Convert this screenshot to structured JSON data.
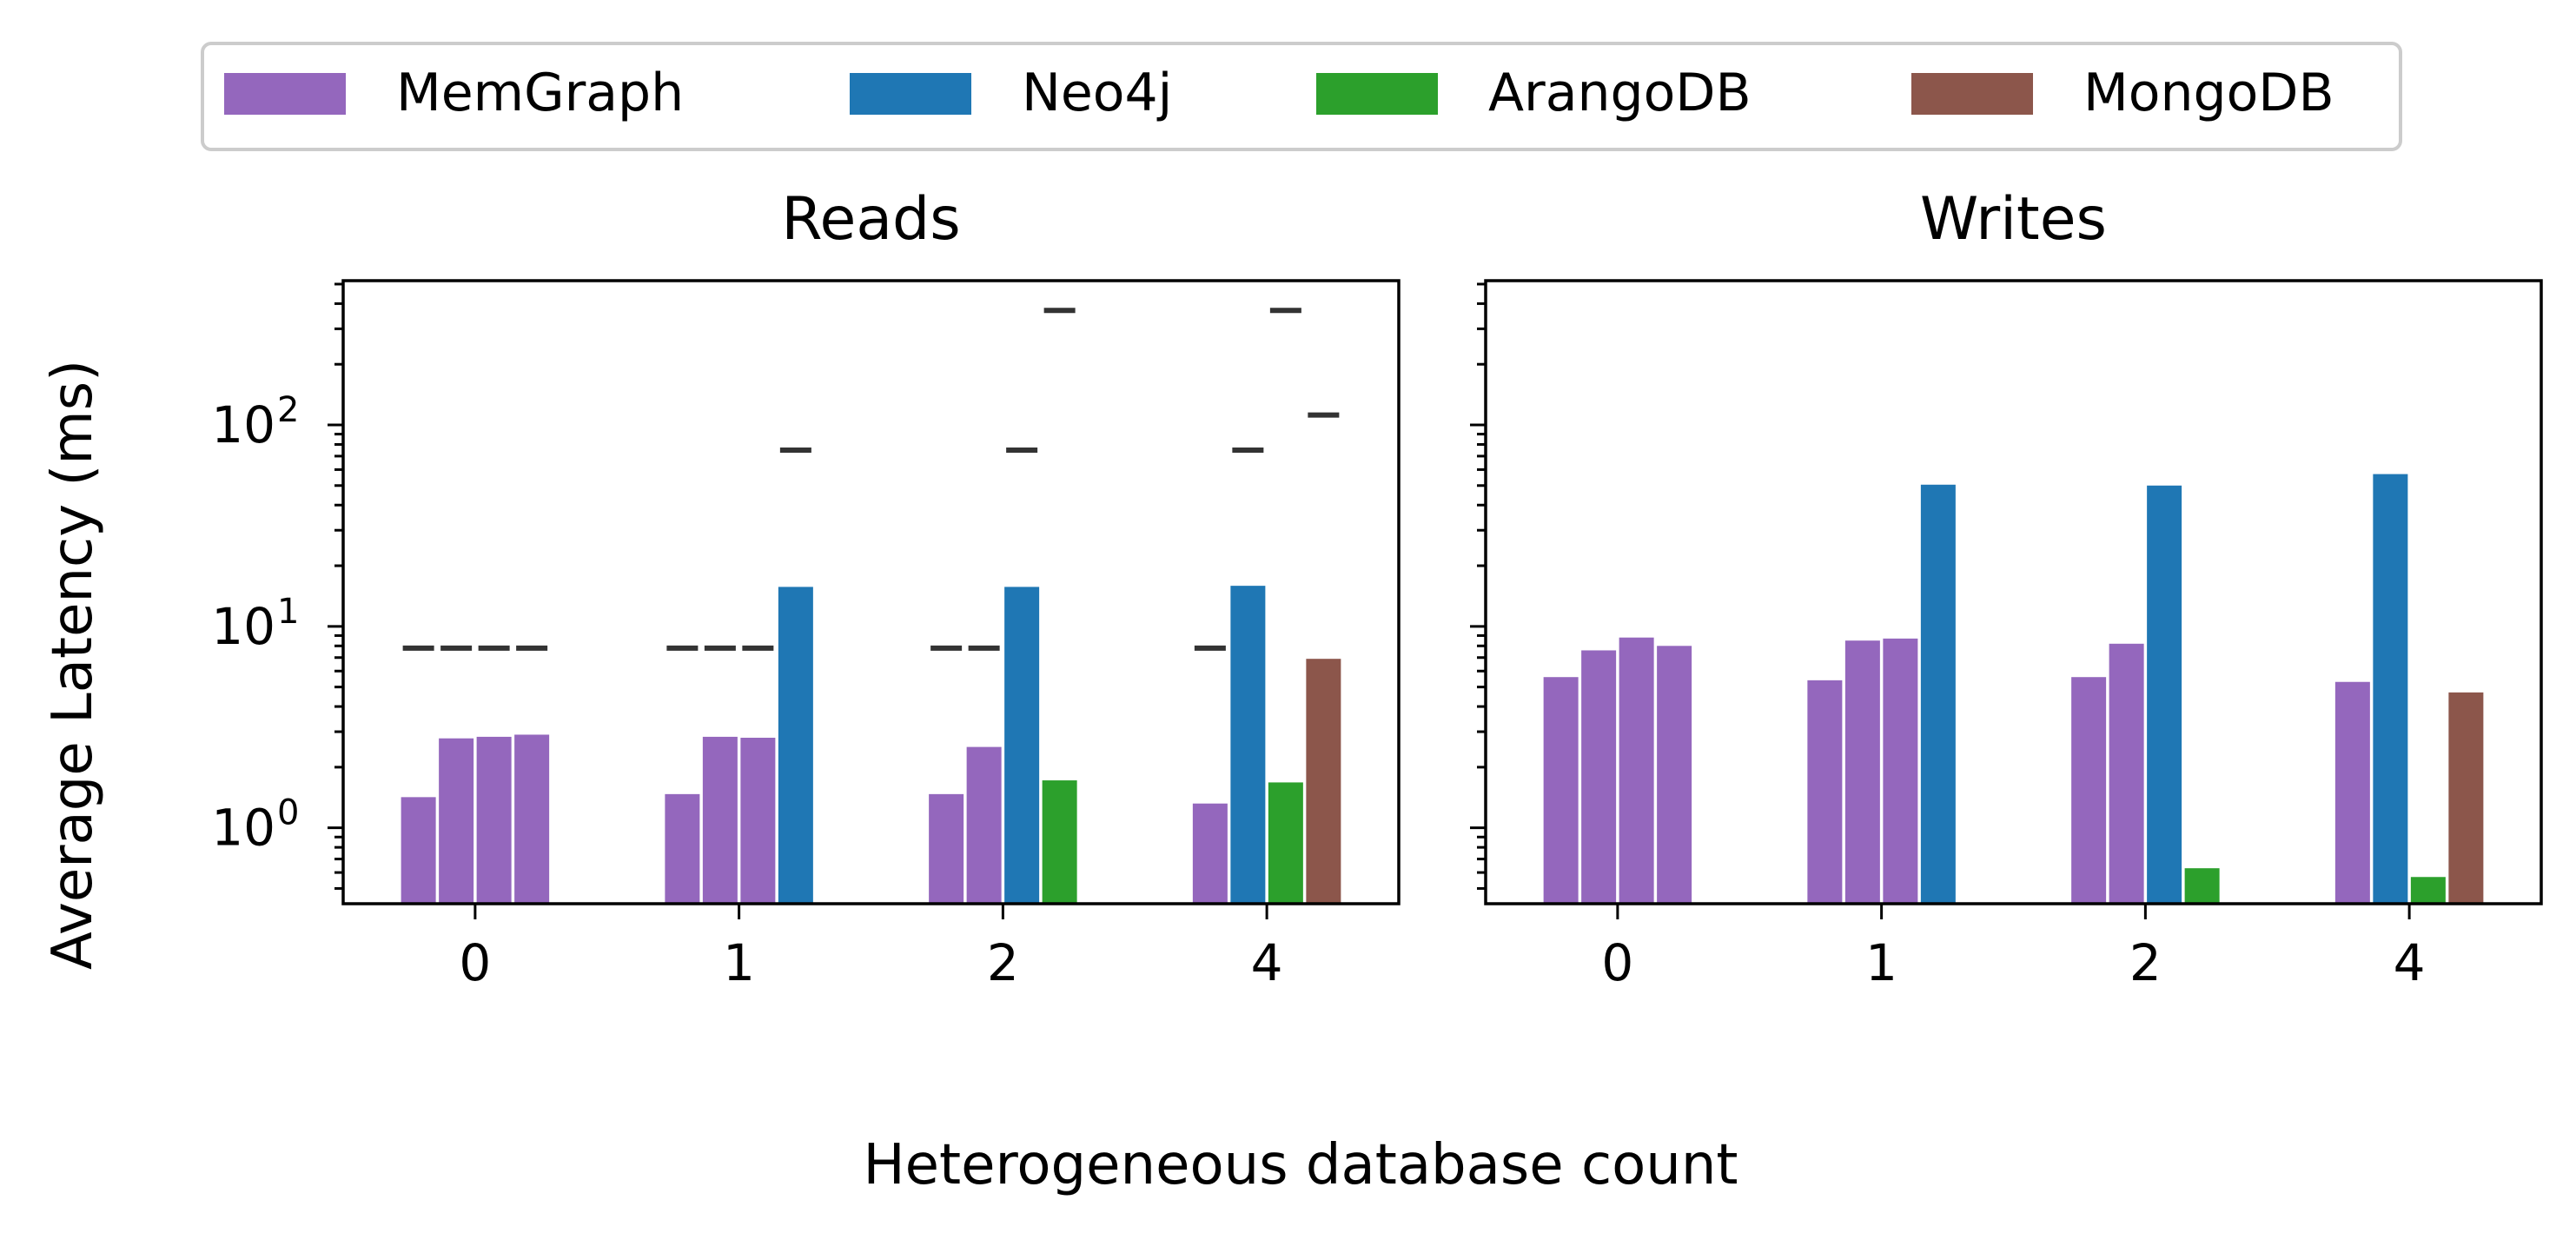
{
  "chart_data": {
    "type": "bar",
    "legend": {
      "placement": "top",
      "entries": [
        {
          "label": "MemGraph",
          "color": "#9467bd"
        },
        {
          "label": "Neo4j",
          "color": "#1f77b4"
        },
        {
          "label": "ArangoDB",
          "color": "#2ca02c"
        },
        {
          "label": "MongoDB",
          "color": "#8c564b"
        }
      ]
    },
    "xlabel": "Heterogeneous database count",
    "ylabel": "Average Latency (ms)",
    "yscale": "log",
    "ylim": [
      0.42,
      520
    ],
    "yticks": [
      {
        "value": 1,
        "base": "10",
        "exp": "0"
      },
      {
        "value": 10,
        "base": "10",
        "exp": "1"
      },
      {
        "value": 100,
        "base": "10",
        "exp": "2"
      }
    ],
    "categories": [
      "0",
      "1",
      "2",
      "4"
    ],
    "bar_marker_color": "#333333",
    "panels": [
      {
        "title": "Reads",
        "groups": [
          {
            "category": "0",
            "bars": [
              {
                "series": "MemGraph",
                "value": 1.42,
                "marker": 7.8
              },
              {
                "series": "MemGraph",
                "value": 2.78,
                "marker": 7.8
              },
              {
                "series": "MemGraph",
                "value": 2.83,
                "marker": 7.8
              },
              {
                "series": "MemGraph",
                "value": 2.9,
                "marker": 7.8
              }
            ]
          },
          {
            "category": "1",
            "bars": [
              {
                "series": "MemGraph",
                "value": 1.47,
                "marker": 7.8
              },
              {
                "series": "MemGraph",
                "value": 2.83,
                "marker": 7.8
              },
              {
                "series": "MemGraph",
                "value": 2.8,
                "marker": 7.8
              },
              {
                "series": "Neo4j",
                "value": 15.7,
                "marker": 75
              }
            ]
          },
          {
            "category": "2",
            "bars": [
              {
                "series": "MemGraph",
                "value": 1.47,
                "marker": 7.8
              },
              {
                "series": "MemGraph",
                "value": 2.52,
                "marker": 7.8
              },
              {
                "series": "Neo4j",
                "value": 15.7,
                "marker": 75
              },
              {
                "series": "ArangoDB",
                "value": 1.72,
                "marker": 370
              }
            ]
          },
          {
            "category": "4",
            "bars": [
              {
                "series": "MemGraph",
                "value": 1.32,
                "marker": 7.8
              },
              {
                "series": "Neo4j",
                "value": 15.9,
                "marker": 75
              },
              {
                "series": "ArangoDB",
                "value": 1.68,
                "marker": 370
              },
              {
                "series": "MongoDB",
                "value": 6.9,
                "marker": 112
              }
            ]
          }
        ]
      },
      {
        "title": "Writes",
        "groups": [
          {
            "category": "0",
            "bars": [
              {
                "series": "MemGraph",
                "value": 5.6
              },
              {
                "series": "MemGraph",
                "value": 7.6
              },
              {
                "series": "MemGraph",
                "value": 8.8
              },
              {
                "series": "MemGraph",
                "value": 8.0
              }
            ]
          },
          {
            "category": "1",
            "bars": [
              {
                "series": "MemGraph",
                "value": 5.4
              },
              {
                "series": "MemGraph",
                "value": 8.5
              },
              {
                "series": "MemGraph",
                "value": 8.7
              },
              {
                "series": "Neo4j",
                "value": 50.5
              }
            ]
          },
          {
            "category": "2",
            "bars": [
              {
                "series": "MemGraph",
                "value": 5.6
              },
              {
                "series": "MemGraph",
                "value": 8.2
              },
              {
                "series": "Neo4j",
                "value": 50
              },
              {
                "series": "ArangoDB",
                "value": 0.63
              }
            ]
          },
          {
            "category": "4",
            "bars": [
              {
                "series": "MemGraph",
                "value": 5.3
              },
              {
                "series": "Neo4j",
                "value": 57
              },
              {
                "series": "ArangoDB",
                "value": 0.57
              },
              {
                "series": "MongoDB",
                "value": 4.7
              }
            ]
          }
        ]
      }
    ]
  }
}
